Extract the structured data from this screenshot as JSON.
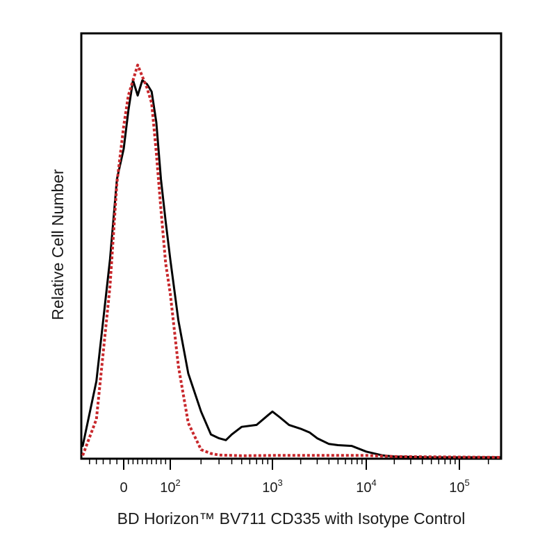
{
  "chart_data": {
    "type": "line",
    "title": "",
    "xlabel": "BD Horizon™ BV711 CD335 with Isotype Control",
    "ylabel": "Relative Cell Number",
    "xscale": "biexponential",
    "xlim": [
      -60,
      262144
    ],
    "ylim": [
      0,
      100
    ],
    "grid": false,
    "legend": "none",
    "x_ticks": [
      {
        "label": "0",
        "exp": "",
        "value": 0
      },
      {
        "label": "10",
        "exp": "2",
        "value": 100
      },
      {
        "label": "10",
        "exp": "3",
        "value": 1000
      },
      {
        "label": "10",
        "exp": "4",
        "value": 10000
      },
      {
        "label": "10",
        "exp": "5",
        "value": 100000
      }
    ],
    "series": [
      {
        "color": "#000000",
        "style": "solid",
        "x": [
          -60,
          -40,
          -20,
          -10,
          0,
          10,
          20,
          30,
          40,
          50,
          60,
          70,
          80,
          90,
          100,
          120,
          150,
          200,
          250,
          300,
          350,
          400,
          500,
          700,
          900,
          1000,
          1200,
          1500,
          2000,
          2500,
          3000,
          4000,
          5000,
          7000,
          10000,
          15000,
          20000,
          50000,
          262144
        ],
        "y": [
          3,
          20,
          52,
          73,
          81,
          91,
          99,
          95,
          99,
          98,
          96,
          88,
          73,
          62,
          52,
          36,
          22,
          12,
          6,
          5,
          4.5,
          6,
          8,
          8.5,
          11,
          12,
          10.5,
          8.5,
          7.5,
          6.5,
          5,
          3.5,
          3.2,
          3,
          1.5,
          0.5,
          0.2,
          0,
          0
        ]
      },
      {
        "color": "#c8282c",
        "style": "dotted",
        "x": [
          -60,
          -40,
          -20,
          -10,
          0,
          10,
          20,
          30,
          40,
          50,
          60,
          70,
          80,
          90,
          100,
          120,
          150,
          200,
          250,
          300,
          400,
          500,
          1000,
          10000,
          20000,
          262144
        ],
        "y": [
          0.5,
          10,
          45,
          72,
          87,
          95,
          99,
          103,
          100,
          97,
          93,
          80,
          65,
          51,
          43,
          24,
          9,
          2,
          1,
          0.6,
          0.5,
          0.4,
          0.5,
          0.5,
          0.2,
          0
        ]
      }
    ]
  }
}
